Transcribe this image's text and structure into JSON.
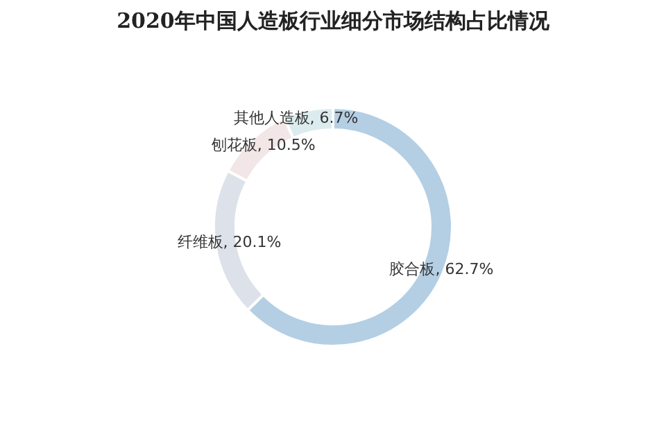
{
  "chart_data": {
    "type": "donut",
    "title": "2020年中国人造板行业细分市场结构占比情况",
    "categories": [
      "胶合板",
      "纤维板",
      "刨花板",
      "其他人造板"
    ],
    "values": [
      62.7,
      20.1,
      10.5,
      6.7
    ],
    "colors": [
      "#b4cfe4",
      "#dde1ea",
      "#f2e6e6",
      "#dcecee"
    ],
    "value_labels": [
      ", 62.7%",
      ", 20.1%",
      ", 10.5%",
      ", 6.7%"
    ],
    "legend": false
  }
}
